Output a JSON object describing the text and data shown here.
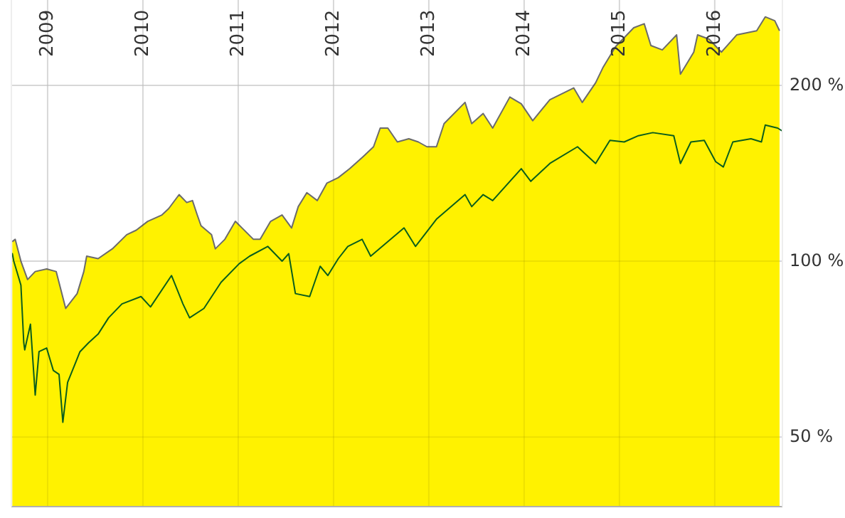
{
  "chart_data": {
    "type": "line",
    "log": "y",
    "grid": true,
    "xlim": [
      2008.62,
      2016.71
    ],
    "xticks": [
      2009,
      2010,
      2011,
      2012,
      2013,
      2014,
      2015,
      2016
    ],
    "ylim": [
      38,
      280
    ],
    "yticks": [
      {
        "value": 50,
        "label": "50 %"
      },
      {
        "value": 100,
        "label": "100 %"
      },
      {
        "value": 200,
        "label": "200 %"
      }
    ],
    "series": [
      {
        "type": "area",
        "color": "#fff200",
        "x": [
          2008.63,
          2008.66,
          2008.72,
          2008.79,
          2008.87,
          2008.99,
          2009.09,
          2009.19,
          2009.31,
          2009.38,
          2009.41,
          2009.53,
          2009.68,
          2009.83,
          2009.93,
          2010.05,
          2010.2,
          2010.27,
          2010.38,
          2010.46,
          2010.52,
          2010.57,
          2010.61,
          2010.72,
          2010.76,
          2010.86,
          2010.97,
          2011.04,
          2011.16,
          2011.23,
          2011.34,
          2011.46,
          2011.56,
          2011.63,
          2011.72,
          2011.83,
          2011.93,
          2012.05,
          2012.17,
          2012.31,
          2012.42,
          2012.49,
          2012.57,
          2012.67,
          2012.79,
          2012.89,
          2012.98,
          2013.08,
          2013.16,
          2013.38,
          2013.45,
          2013.57,
          2013.67,
          2013.85,
          2013.97,
          2014.09,
          2014.27,
          2014.52,
          2014.61,
          2014.75,
          2014.83,
          2014.96,
          2015.15,
          2015.26,
          2015.33,
          2015.45,
          2015.6,
          2015.64,
          2015.78,
          2015.82,
          2015.94,
          2016.07,
          2016.23,
          2016.44,
          2016.53,
          2016.63,
          2016.68
        ],
        "values": [
          108,
          109,
          100,
          93,
          96,
          97,
          96,
          83,
          88,
          96,
          102,
          101,
          105,
          111,
          113,
          117,
          120,
          123,
          130,
          126,
          127,
          120,
          115,
          111,
          105,
          109,
          117,
          114,
          109,
          109,
          117,
          120,
          114,
          124,
          131,
          127,
          136,
          139,
          144,
          151,
          157,
          169,
          169,
          160,
          162,
          160,
          157,
          157,
          172,
          187,
          172,
          179,
          169,
          191,
          186,
          174,
          189,
          198,
          187,
          202,
          215,
          233,
          251,
          255,
          234,
          230,
          244,
          209,
          228,
          244,
          240,
          228,
          244,
          248,
          262,
          258,
          248
        ]
      },
      {
        "type": "line",
        "color": "#0b5e1c",
        "x": [
          2008.63,
          2008.645,
          2008.72,
          2008.75,
          2008.76,
          2008.82,
          2008.87,
          2008.91,
          2008.99,
          2009.06,
          2009.12,
          2009.16,
          2009.21,
          2009.34,
          2009.43,
          2009.53,
          2009.64,
          2009.78,
          2009.98,
          2010.08,
          2010.3,
          2010.42,
          2010.49,
          2010.64,
          2010.82,
          2011.01,
          2011.12,
          2011.31,
          2011.46,
          2011.53,
          2011.6,
          2011.75,
          2011.86,
          2011.94,
          2012.05,
          2012.15,
          2012.3,
          2012.39,
          2012.74,
          2012.86,
          2013.08,
          2013.38,
          2013.45,
          2013.57,
          2013.67,
          2013.97,
          2014.07,
          2014.27,
          2014.56,
          2014.75,
          2014.9,
          2015.05,
          2015.2,
          2015.35,
          2015.57,
          2015.64,
          2015.75,
          2015.89,
          2016.01,
          2016.09,
          2016.19,
          2016.38,
          2016.49,
          2016.53,
          2016.66,
          2016.71
        ],
        "values": [
          103,
          100,
          91,
          72.5,
          70.5,
          78,
          59,
          70,
          71,
          65,
          64,
          53,
          62,
          70,
          72.5,
          75,
          80,
          84.5,
          87,
          83.5,
          94.5,
          84.5,
          80,
          83,
          92,
          99,
          102,
          106,
          100,
          103,
          88,
          87,
          98,
          94.5,
          101,
          106,
          109,
          102,
          114,
          106,
          118,
          130,
          124,
          130,
          127,
          144,
          137,
          147,
          157,
          147,
          161,
          160,
          164,
          166,
          164,
          147,
          160,
          161,
          148,
          145,
          160,
          162,
          160,
          171,
          169,
          167
        ]
      }
    ]
  }
}
